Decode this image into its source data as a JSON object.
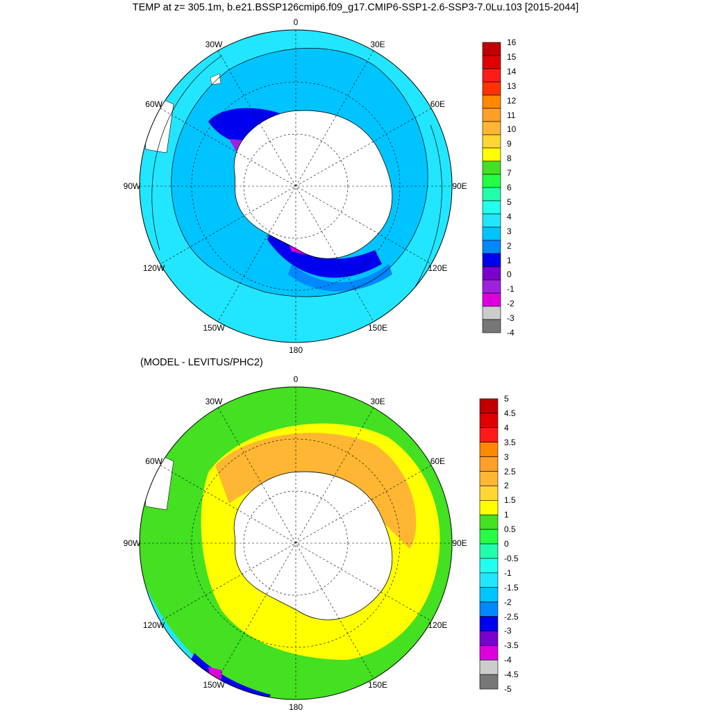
{
  "title": "TEMP at z= 305.1m, b.e21.BSSP126cmip6.f09_g17.CMIP6-SSP1-2.6-SSP3-7.0Lu.103 [2015-2044]",
  "subtitle": "(MODEL - LEVITUS/PHC2)",
  "longitude_labels": [
    "0",
    "30E",
    "60E",
    "90E",
    "120E",
    "150E",
    "180",
    "150W",
    "120W",
    "90W",
    "60W",
    "30W"
  ],
  "panels": [
    {
      "name": "temperature",
      "colorbar": {
        "labels": [
          "16",
          "15",
          "14",
          "13",
          "12",
          "11",
          "10",
          "9",
          "8",
          "7",
          "6",
          "5",
          "4",
          "3",
          "2",
          "1",
          "0",
          "-1",
          "-2",
          "-3",
          "-4"
        ],
        "colors": [
          "#c00000",
          "#e00000",
          "#ff1a1a",
          "#ff3300",
          "#ff8800",
          "#ff9f28",
          "#ffb733",
          "#ffd633",
          "#ffff00",
          "#44e022",
          "#22ff44",
          "#22ffaa",
          "#22ffee",
          "#22e6ff",
          "#00c4ff",
          "#0088ff",
          "#0000ee",
          "#7a00cc",
          "#9e22dd",
          "#dd00dd",
          "#cccccc",
          "#777777"
        ]
      }
    },
    {
      "name": "anomaly",
      "colorbar": {
        "labels": [
          "5",
          "4.5",
          "4",
          "3.5",
          "3",
          "2.5",
          "2",
          "1.5",
          "1",
          "0.5",
          "0",
          "-0.5",
          "-1",
          "-1.5",
          "-2",
          "-2.5",
          "-3",
          "-3.5",
          "-4",
          "-4.5",
          "-5"
        ],
        "colors": [
          "#c00000",
          "#e00000",
          "#ff1a1a",
          "#ff8800",
          "#ff9f28",
          "#ffb733",
          "#ffd633",
          "#ffff00",
          "#44e022",
          "#22ff44",
          "#22ffaa",
          "#22ffee",
          "#22e6ff",
          "#00c4ff",
          "#0088ff",
          "#0000ee",
          "#7a00cc",
          "#dd00dd",
          "#cccccc",
          "#777777"
        ]
      }
    }
  ],
  "colors": {
    "land": "#ffffff",
    "outline": "#000000",
    "ocean_t_mid": "#00c4ff",
    "ocean_t_outer": "#22e6ff",
    "ocean_a_green": "#44e022",
    "ocean_a_yellow": "#ffff00",
    "ocean_a_orange": "#ffb733"
  }
}
